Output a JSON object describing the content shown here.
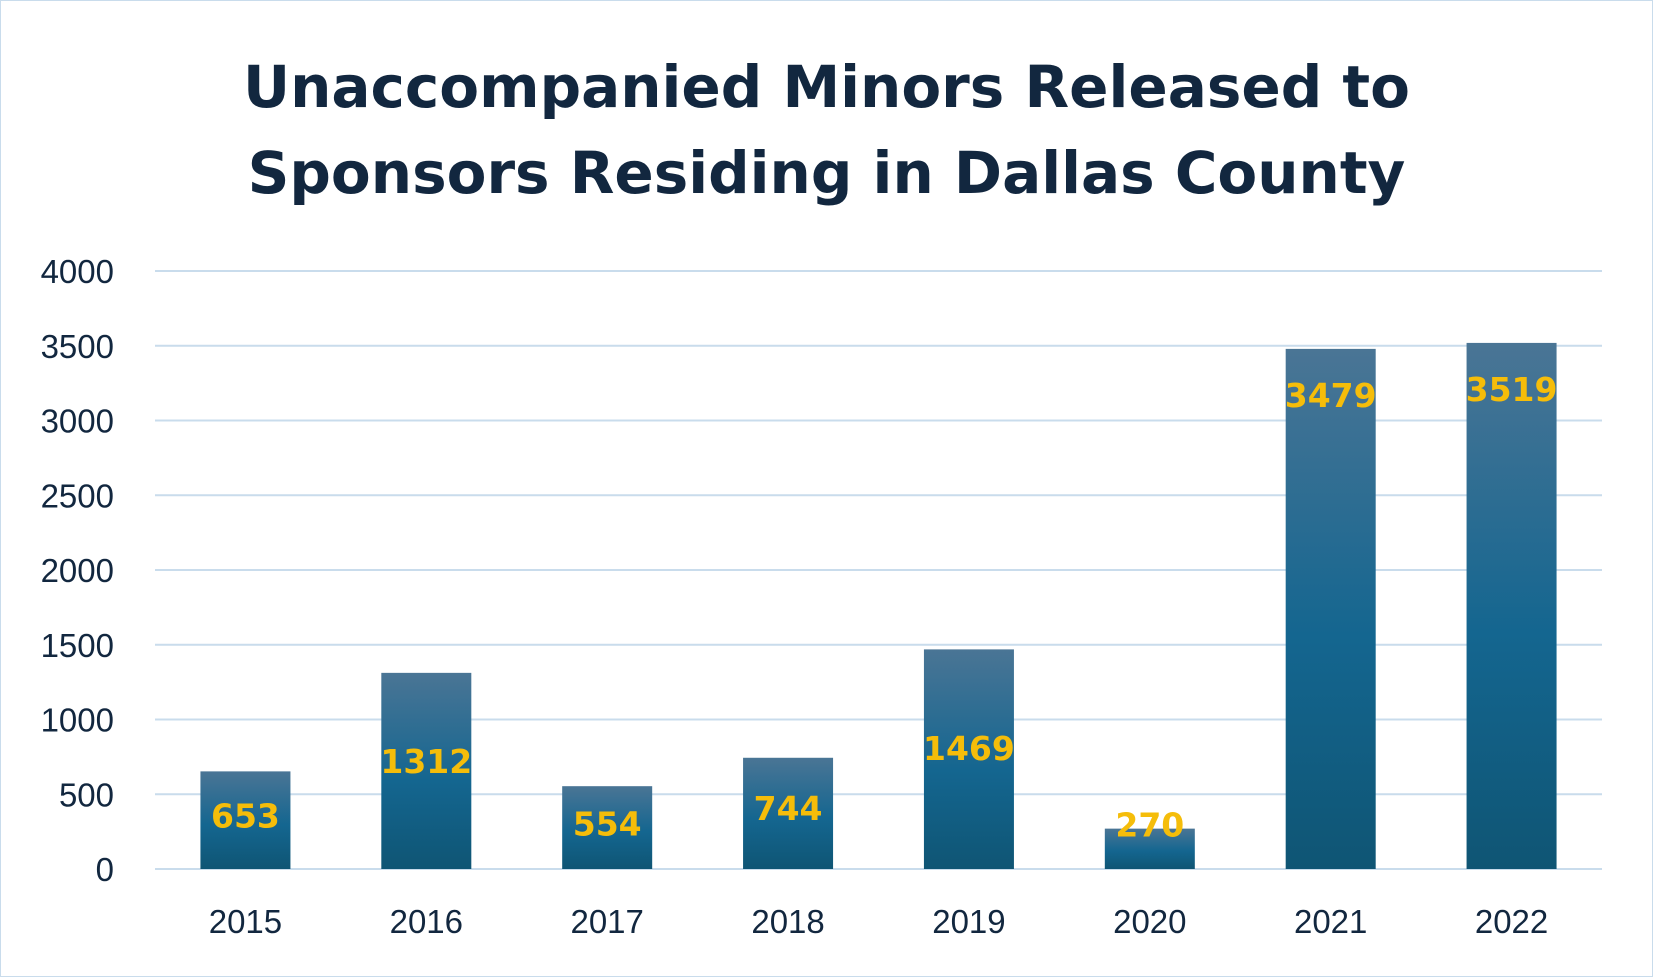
{
  "chart_data": {
    "type": "bar",
    "title_lines": [
      "Unaccompanied Minors Released to",
      "Sponsors Residing in Dallas County"
    ],
    "categories": [
      "2015",
      "2016",
      "2017",
      "2018",
      "2019",
      "2020",
      "2021",
      "2022"
    ],
    "values": [
      653,
      1312,
      554,
      744,
      1469,
      270,
      3479,
      3519
    ],
    "data_labels": [
      "653",
      "1312",
      "554",
      "744",
      "1469",
      "270",
      "3479",
      "3519"
    ],
    "y_ticks": [
      "0",
      "500",
      "1000",
      "1500",
      "2000",
      "2500",
      "3000",
      "3500",
      "4000"
    ],
    "ylim": [
      0,
      4000
    ],
    "grid": true,
    "legend": "none",
    "colors": {
      "bar_top": "#4a7595",
      "bar_mid": "#146690",
      "bar_bottom": "#0f5574",
      "grid": "#c9dcec",
      "label": "#f5bd0a",
      "text": "#12273f"
    }
  }
}
